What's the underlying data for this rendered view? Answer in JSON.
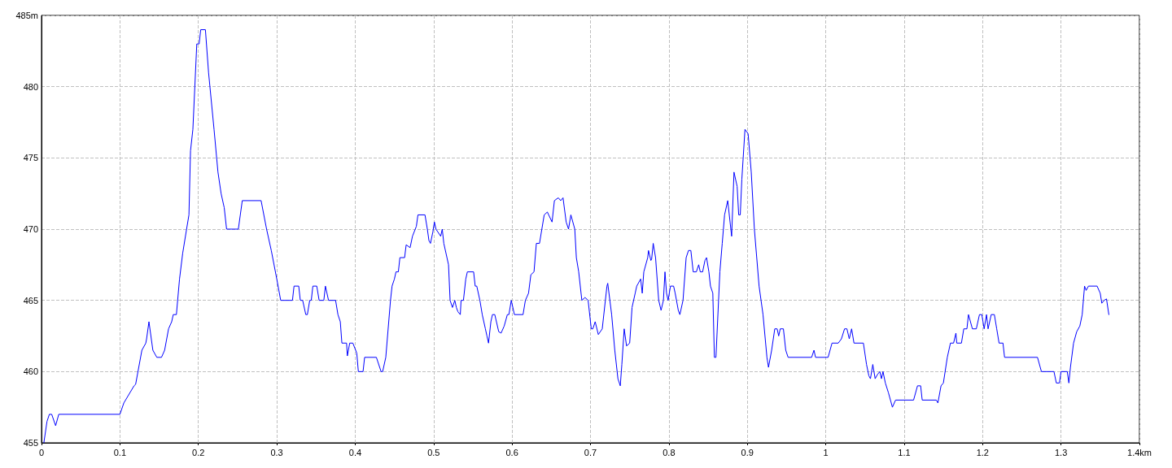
{
  "chart_data": {
    "type": "line",
    "color": "#0000ff",
    "marker": "none",
    "line_style": "solid",
    "grid": true,
    "xlim": [
      0,
      1.4
    ],
    "xticks": [
      0,
      0.1,
      0.2,
      0.3,
      0.4,
      0.5,
      0.6,
      0.7,
      0.8,
      0.9,
      1,
      1.1,
      1.2,
      1.3,
      {
        "value": 1.4,
        "label": "1.4km"
      }
    ],
    "ylim": [
      455,
      485
    ],
    "yticks": [
      455,
      460,
      465,
      470,
      475,
      480,
      {
        "value": 485,
        "label": "485m"
      }
    ],
    "x": [
      0.003,
      0.007,
      0.01,
      0.013,
      0.018,
      0.022,
      0.1,
      0.105,
      0.118,
      0.12,
      0.128,
      0.133,
      0.134,
      0.137,
      0.142,
      0.147,
      0.153,
      0.157,
      0.162,
      0.166,
      0.168,
      0.172,
      0.176,
      0.18,
      0.185,
      0.188,
      0.19,
      0.193,
      0.198,
      0.201,
      0.203,
      0.209,
      0.213,
      0.22,
      0.225,
      0.229,
      0.233,
      0.236,
      0.251,
      0.256,
      0.28,
      0.287,
      0.293,
      0.3,
      0.305,
      0.32,
      0.322,
      0.328,
      0.33,
      0.333,
      0.337,
      0.339,
      0.342,
      0.344,
      0.346,
      0.351,
      0.354,
      0.36,
      0.362,
      0.366,
      0.375,
      0.378,
      0.381,
      0.383,
      0.389,
      0.39,
      0.393,
      0.397,
      0.402,
      0.404,
      0.41,
      0.412,
      0.427,
      0.433,
      0.435,
      0.439,
      0.445,
      0.447,
      0.45,
      0.452,
      0.455,
      0.457,
      0.463,
      0.465,
      0.47,
      0.473,
      0.478,
      0.48,
      0.489,
      0.492,
      0.494,
      0.496,
      0.499,
      0.501,
      0.503,
      0.509,
      0.511,
      0.513,
      0.517,
      0.519,
      0.521,
      0.524,
      0.527,
      0.529,
      0.531,
      0.534,
      0.535,
      0.538,
      0.541,
      0.543,
      0.551,
      0.553,
      0.555,
      0.559,
      0.562,
      0.566,
      0.568,
      0.57,
      0.573,
      0.575,
      0.578,
      0.583,
      0.586,
      0.59,
      0.594,
      0.596,
      0.599,
      0.603,
      0.605,
      0.614,
      0.617,
      0.621,
      0.624,
      0.628,
      0.631,
      0.635,
      0.638,
      0.641,
      0.645,
      0.651,
      0.654,
      0.659,
      0.662,
      0.665,
      0.669,
      0.672,
      0.675,
      0.68,
      0.682,
      0.685,
      0.689,
      0.693,
      0.697,
      0.701,
      0.703,
      0.706,
      0.71,
      0.715,
      0.719,
      0.721,
      0.722,
      0.727,
      0.731,
      0.735,
      0.738,
      0.74,
      0.743,
      0.746,
      0.75,
      0.753,
      0.757,
      0.759,
      0.764,
      0.766,
      0.768,
      0.773,
      0.774,
      0.777,
      0.778,
      0.78,
      0.783,
      0.787,
      0.79,
      0.793,
      0.795,
      0.797,
      0.799,
      0.802,
      0.806,
      0.808,
      0.812,
      0.814,
      0.818,
      0.822,
      0.825,
      0.828,
      0.831,
      0.835,
      0.838,
      0.84,
      0.843,
      0.846,
      0.848,
      0.851,
      0.853,
      0.856,
      0.858,
      0.86,
      0.865,
      0.868,
      0.871,
      0.875,
      0.879,
      0.88,
      0.883,
      0.887,
      0.889,
      0.891,
      0.893,
      0.897,
      0.901,
      0.905,
      0.909,
      0.915,
      0.92,
      0.925,
      0.927,
      0.931,
      0.935,
      0.938,
      0.94,
      0.942,
      0.946,
      0.949,
      0.952,
      0.982,
      0.985,
      0.987,
      1.003,
      1.008,
      1.016,
      1.02,
      1.024,
      1.027,
      1.03,
      1.033,
      1.036,
      1.048,
      1.052,
      1.055,
      1.057,
      1.06,
      1.063,
      1.066,
      1.069,
      1.071,
      1.073,
      1.076,
      1.08,
      1.085,
      1.089,
      1.112,
      1.117,
      1.121,
      1.123,
      1.141,
      1.143,
      1.147,
      1.15,
      1.155,
      1.159,
      1.163,
      1.166,
      1.167,
      1.173,
      1.176,
      1.18,
      1.182,
      1.187,
      1.192,
      1.196,
      1.199,
      1.202,
      1.205,
      1.207,
      1.211,
      1.215,
      1.218,
      1.221,
      1.226,
      1.228,
      1.27,
      1.275,
      1.291,
      1.294,
      1.298,
      1.3,
      1.308,
      1.31,
      1.312,
      1.316,
      1.32,
      1.324,
      1.327,
      1.33,
      1.332,
      1.335,
      1.346,
      1.35,
      1.352,
      1.355,
      1.358,
      1.361
    ],
    "values": [
      455,
      456.5,
      457,
      457,
      456.2,
      457,
      457,
      457.8,
      459,
      459.1,
      461.5,
      462,
      462.3,
      463.5,
      461.5,
      461,
      461,
      461.5,
      463,
      463.5,
      464,
      464,
      466.5,
      468.3,
      470,
      471,
      475.5,
      477,
      483,
      483,
      484,
      484,
      481,
      477,
      474,
      472.5,
      471.5,
      470,
      470,
      472,
      472,
      470,
      468.5,
      466.5,
      465,
      465,
      466,
      466,
      465,
      465,
      464,
      464,
      465,
      465,
      466,
      466,
      465,
      465,
      466,
      465,
      465,
      464,
      463.5,
      462,
      462,
      461.1,
      462,
      462,
      461.3,
      460,
      460,
      461,
      461,
      460,
      460,
      461,
      465,
      466,
      466.5,
      467,
      467,
      468,
      468,
      468.9,
      468.7,
      469.5,
      470.2,
      471,
      471,
      470,
      469.2,
      469,
      469.8,
      470.5,
      470,
      469.5,
      470,
      469,
      468,
      467.5,
      465,
      464.5,
      465,
      464.5,
      464.2,
      464,
      465,
      465,
      466.5,
      467,
      467,
      466,
      466,
      465,
      464,
      463,
      462.5,
      462,
      463.5,
      464,
      464,
      462.8,
      462.7,
      463.2,
      464,
      464,
      465,
      464,
      464,
      464,
      465,
      465.5,
      466.8,
      467,
      469,
      469,
      470,
      471,
      471.2,
      470.5,
      472,
      472.2,
      472,
      472.2,
      470.5,
      470,
      471,
      470,
      468,
      467,
      465,
      465.2,
      465,
      463,
      463,
      463.5,
      462.6,
      463,
      465,
      466,
      466.2,
      464,
      461.5,
      459.5,
      459,
      460.5,
      463,
      461.8,
      462,
      464.5,
      465.5,
      466,
      466.5,
      465.5,
      467,
      468,
      468.5,
      467.8,
      467.9,
      469,
      468,
      465,
      464.3,
      465,
      467,
      465.5,
      465,
      466,
      466,
      465.5,
      464.3,
      464,
      465,
      468,
      468.5,
      468.5,
      467,
      467,
      467.5,
      467,
      467,
      467.8,
      468,
      467,
      466,
      465.5,
      461,
      461,
      467,
      469,
      471,
      472,
      470,
      469.5,
      474,
      473,
      471,
      471,
      473.5,
      477,
      476.7,
      474,
      470,
      466,
      464,
      461,
      460.3,
      461.5,
      463,
      463,
      462.5,
      463,
      463,
      461.5,
      461,
      461,
      461.5,
      461,
      461,
      462,
      462,
      462.3,
      463,
      463,
      462.3,
      463,
      462,
      462,
      460.5,
      459.7,
      459.5,
      460.5,
      459.5,
      459.8,
      460,
      459.5,
      460,
      459.2,
      458.5,
      457.5,
      458,
      458,
      459,
      459,
      458,
      458,
      457.8,
      459,
      459.2,
      461,
      462,
      462,
      462.7,
      462,
      462,
      463,
      463,
      464,
      463,
      463,
      464,
      464,
      463,
      464,
      463,
      464,
      464,
      463,
      462,
      462,
      461,
      461,
      460,
      460,
      459.2,
      459.2,
      460,
      460,
      459.2,
      460.3,
      462,
      462.8,
      463.2,
      464,
      466,
      465.7,
      466,
      466,
      465.5,
      464.8,
      465,
      465.1,
      464
    ]
  }
}
